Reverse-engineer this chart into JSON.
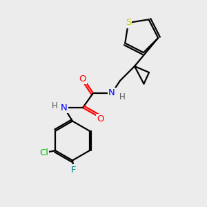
{
  "bg_color": "#ececec",
  "bond_color": "#000000",
  "bond_width": 1.6,
  "atom_colors": {
    "S": "#cccc00",
    "N": "#0000ff",
    "O": "#ff0000",
    "Cl": "#00bb00",
    "F": "#008888",
    "C": "#000000",
    "H": "#555555"
  }
}
